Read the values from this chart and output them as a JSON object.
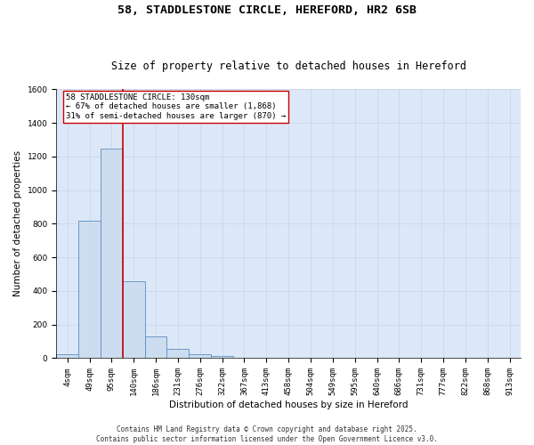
{
  "title_line1": "58, STADDLESTONE CIRCLE, HEREFORD, HR2 6SB",
  "title_line2": "Size of property relative to detached houses in Hereford",
  "xlabel": "Distribution of detached houses by size in Hereford",
  "ylabel": "Number of detached properties",
  "bar_labels": [
    "4sqm",
    "49sqm",
    "95sqm",
    "140sqm",
    "186sqm",
    "231sqm",
    "276sqm",
    "322sqm",
    "367sqm",
    "413sqm",
    "458sqm",
    "504sqm",
    "549sqm",
    "595sqm",
    "640sqm",
    "686sqm",
    "731sqm",
    "777sqm",
    "822sqm",
    "868sqm",
    "913sqm"
  ],
  "bar_values": [
    25,
    820,
    1248,
    460,
    130,
    58,
    22,
    12,
    0,
    0,
    0,
    0,
    0,
    0,
    0,
    0,
    0,
    0,
    0,
    0,
    0
  ],
  "bar_color": "#cdddf0",
  "bar_edge_color": "#5b8ec4",
  "vline_color": "#cc0000",
  "annotation_text": "58 STADDLESTONE CIRCLE: 130sqm\n← 67% of detached houses are smaller (1,868)\n31% of semi-detached houses are larger (870) →",
  "annotation_box_color": "#ffffff",
  "annotation_box_edge": "#cc0000",
  "ylim": [
    0,
    1600
  ],
  "yticks": [
    0,
    200,
    400,
    600,
    800,
    1000,
    1200,
    1400,
    1600
  ],
  "grid_color": "#c8d4e8",
  "bg_color": "#dce8f8",
  "footer_line1": "Contains HM Land Registry data © Crown copyright and database right 2025.",
  "footer_line2": "Contains public sector information licensed under the Open Government Licence v3.0.",
  "title_fontsize": 9.5,
  "subtitle_fontsize": 8.5,
  "axis_label_fontsize": 7.5,
  "tick_fontsize": 6.5,
  "annotation_fontsize": 6.5,
  "footer_fontsize": 5.5
}
